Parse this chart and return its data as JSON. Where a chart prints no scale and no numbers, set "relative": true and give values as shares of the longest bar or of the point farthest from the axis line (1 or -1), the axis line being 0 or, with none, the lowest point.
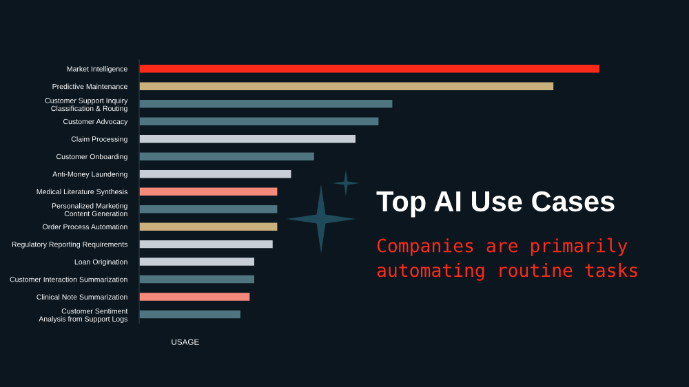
{
  "chart_data": {
    "type": "bar",
    "orientation": "horizontal",
    "relative": true,
    "title": "Top AI Use Cases",
    "subtitle": "Companies are primarily automating routine tasks",
    "xlabel": "USAGE",
    "categories": [
      "Market Intelligence",
      "Predictive Maintenance",
      "Customer Support Inquiry\nClassification & Routing",
      "Customer Advocacy",
      "Claim Processing",
      "Customer Onboarding",
      "Anti-Money Laundering",
      "Medical Literature Synthesis",
      "Personalized Marketing\nContent Generation",
      "Order Process Automation",
      "Regulatory Reporting Requirements",
      "Loan Origination",
      "Customer Interaction Summarization",
      "Clinical Note Summarization",
      "Customer Sentiment\nAnalysis from Support Logs"
    ],
    "values": [
      1,
      0.9,
      0.55,
      0.52,
      0.47,
      0.38,
      0.33,
      0.3,
      0.3,
      0.3,
      0.29,
      0.25,
      0.25,
      0.24,
      0.22
    ],
    "colors": [
      "#ff2a1a",
      "#c9b07c",
      "#4f7580",
      "#4f7580",
      "#c8ced6",
      "#4f7580",
      "#c8ced6",
      "#f58a7c",
      "#4f7580",
      "#c9b07c",
      "#c8ced6",
      "#c8ced6",
      "#4f7580",
      "#f58a7c",
      "#4f7580"
    ],
    "grid": false,
    "legend": false
  }
}
